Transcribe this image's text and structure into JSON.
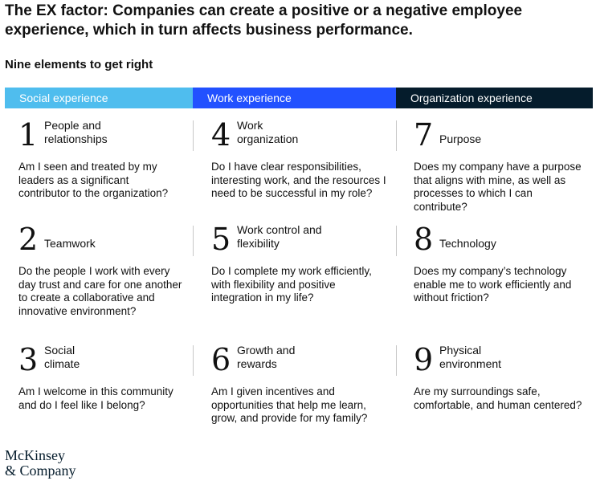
{
  "title": "The EX factor: Companies can create a positive or a negative employee experience, which in turn affects business performance.",
  "subtitle": "Nine elements to get right",
  "columns": [
    {
      "header": "Social experience",
      "color": "#4fbdee",
      "elements": [
        {
          "number": "1",
          "label": "People and relationships",
          "question": "Am I seen and treated by my leaders as a significant contributor to the organization?"
        },
        {
          "number": "2",
          "label": "Teamwork",
          "question": "Do the people I work with every day trust and care for one another to create a collaborative and innovative environment?"
        },
        {
          "number": "3",
          "label": "Social climate",
          "question": "Am I welcome in this community and do I feel like I belong?"
        }
      ]
    },
    {
      "header": "Work experience",
      "color": "#2251ff",
      "elements": [
        {
          "number": "4",
          "label": "Work organization",
          "question": "Do I have clear responsibilities, interesting work, and the resources I need to be successful in my role?"
        },
        {
          "number": "5",
          "label": "Work control and flexibility",
          "question": "Do I complete my work efficiently, with flexibility and positive integration in my life?"
        },
        {
          "number": "6",
          "label": "Growth and rewards",
          "question": "Am I given incentives and opportunities that help me learn, grow, and provide for my family?"
        }
      ]
    },
    {
      "header": "Organization experience",
      "color": "#051c2c",
      "elements": [
        {
          "number": "7",
          "label": "Purpose",
          "question": "Does my company have a purpose that aligns with mine, as well as processes to which I can contribute?"
        },
        {
          "number": "8",
          "label": "Technology",
          "question": "Does my company’s technology enable me to work efficiently and without friction?"
        },
        {
          "number": "9",
          "label": "Physical environment",
          "question": "Are my surroundings safe, comfortable, and human centered?"
        }
      ]
    }
  ],
  "logo": {
    "line1": "McKinsey",
    "line2": "& Company"
  }
}
